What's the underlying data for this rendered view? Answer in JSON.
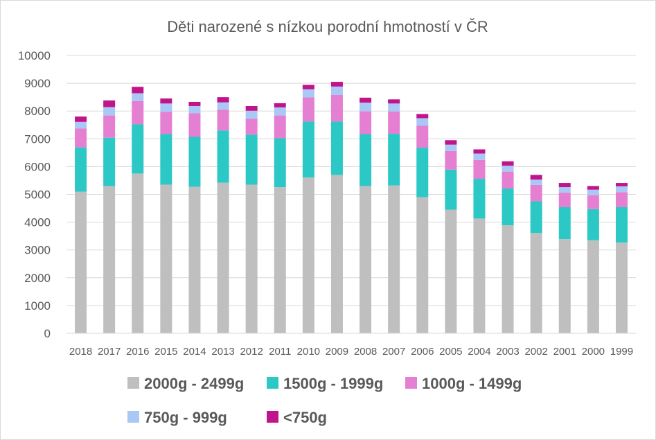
{
  "chart_data": {
    "type": "bar",
    "stacked": true,
    "title": "Děti narozené s nízkou porodní hmotností v ČR",
    "xlabel": "",
    "ylabel": "",
    "ylim": [
      0,
      10000
    ],
    "y_ticks": [
      "0",
      "1000",
      "2000",
      "3000",
      "4000",
      "5000",
      "6000",
      "7000",
      "8000",
      "9000",
      "10000"
    ],
    "grid": true,
    "legend_position": "bottom",
    "categories": [
      "2018",
      "2017",
      "2016",
      "2015",
      "2014",
      "2013",
      "2012",
      "2011",
      "2010",
      "2009",
      "2008",
      "2007",
      "2006",
      "2005",
      "2004",
      "2003",
      "2002",
      "2001",
      "2000",
      "1999"
    ],
    "series": [
      {
        "name": "2000g - 2499g",
        "color": "#bfbfbf",
        "values": [
          5100,
          5300,
          5750,
          5350,
          5270,
          5420,
          5350,
          5260,
          5610,
          5700,
          5300,
          5320,
          4900,
          4450,
          4130,
          3890,
          3610,
          3390,
          3350,
          3270
        ]
      },
      {
        "name": "1500g - 1999g",
        "color": "#2bc8c6",
        "values": [
          1590,
          1740,
          1770,
          1820,
          1800,
          1880,
          1800,
          1760,
          2010,
          1920,
          1870,
          1860,
          1780,
          1440,
          1430,
          1320,
          1140,
          1150,
          1120,
          1270
        ]
      },
      {
        "name": "1000g - 1499g",
        "color": "#e57fd1",
        "values": [
          680,
          800,
          840,
          800,
          850,
          750,
          570,
          820,
          870,
          960,
          820,
          800,
          790,
          670,
          680,
          610,
          590,
          520,
          500,
          540
        ]
      },
      {
        "name": "750g - 999g",
        "color": "#a9c8f5",
        "values": [
          240,
          300,
          280,
          300,
          260,
          260,
          290,
          290,
          290,
          300,
          310,
          290,
          270,
          230,
          230,
          210,
          190,
          200,
          200,
          210
        ]
      },
      {
        "name": "<750g",
        "color": "#c0148c",
        "values": [
          190,
          240,
          230,
          180,
          150,
          190,
          170,
          150,
          160,
          170,
          180,
          150,
          150,
          160,
          150,
          160,
          170,
          150,
          130,
          120
        ]
      }
    ]
  }
}
